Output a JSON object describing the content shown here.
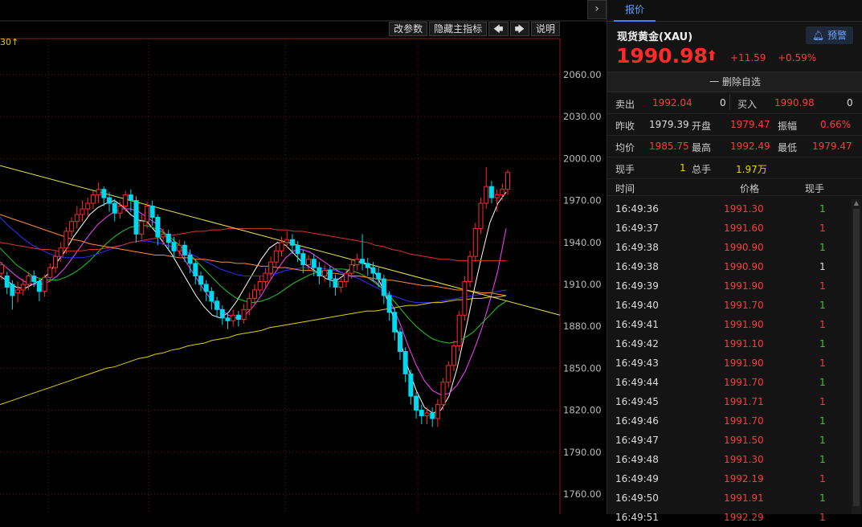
{
  "toolbar": {
    "modify_params": "改参数",
    "hide_indicator": "隐藏主指标",
    "prev_icon": "arrow-left",
    "next_icon": "arrow-right",
    "help": "说明"
  },
  "chart": {
    "period_tag": "30↑"
  },
  "colors": {
    "up": "#ff2a2a",
    "down": "#00d8f0",
    "ma5": "#ffffff",
    "ma10": "#ff40ff",
    "ma20": "#22cc22",
    "ma30": "#3030ff",
    "ma60": "#e03030",
    "ma120": "#ff8a3a",
    "ma250": "#e0d000",
    "trendline": "#e6e64a"
  },
  "chart_data": {
    "type": "candlestick",
    "y_axis_labels": [
      "2060.00",
      "2030.00",
      "2000.00",
      "1970.00",
      "1940.00",
      "1910.00",
      "1880.00",
      "1850.00",
      "1820.00",
      "1790.00",
      "1760.00"
    ],
    "ylim": [
      1745,
      2085
    ],
    "candles": [
      [
        1918,
        1924,
        1913,
        1926
      ],
      [
        1916,
        1908,
        1903,
        1919
      ],
      [
        1910,
        1902,
        1892,
        1913
      ],
      [
        1904,
        1906,
        1897,
        1912
      ],
      [
        1906,
        1910,
        1902,
        1914
      ],
      [
        1910,
        1916,
        1906,
        1919
      ],
      [
        1916,
        1912,
        1908,
        1920
      ],
      [
        1912,
        1905,
        1898,
        1914
      ],
      [
        1905,
        1915,
        1901,
        1917
      ],
      [
        1915,
        1922,
        1912,
        1925
      ],
      [
        1922,
        1930,
        1918,
        1934
      ],
      [
        1930,
        1936,
        1926,
        1940
      ],
      [
        1936,
        1948,
        1932,
        1951
      ],
      [
        1948,
        1955,
        1944,
        1958
      ],
      [
        1955,
        1960,
        1950,
        1966
      ],
      [
        1960,
        1964,
        1955,
        1970
      ],
      [
        1964,
        1968,
        1958,
        1972
      ],
      [
        1968,
        1974,
        1964,
        1977
      ],
      [
        1974,
        1978,
        1968,
        1983
      ],
      [
        1978,
        1972,
        1966,
        1980
      ],
      [
        1972,
        1968,
        1962,
        1976
      ],
      [
        1968,
        1961,
        1955,
        1971
      ],
      [
        1961,
        1966,
        1957,
        1969
      ],
      [
        1966,
        1974,
        1962,
        1977
      ],
      [
        1974,
        1970,
        1962,
        1978
      ],
      [
        1970,
        1946,
        1940,
        1973
      ],
      [
        1946,
        1955,
        1942,
        1960
      ],
      [
        1955,
        1966,
        1950,
        1969
      ],
      [
        1966,
        1958,
        1952,
        1970
      ],
      [
        1958,
        1944,
        1938,
        1960
      ],
      [
        1944,
        1946,
        1938,
        1950
      ],
      [
        1946,
        1940,
        1934,
        1949
      ],
      [
        1940,
        1934,
        1928,
        1944
      ],
      [
        1934,
        1938,
        1930,
        1942
      ],
      [
        1938,
        1931,
        1926,
        1941
      ],
      [
        1931,
        1925,
        1918,
        1935
      ],
      [
        1925,
        1916,
        1910,
        1928
      ],
      [
        1916,
        1910,
        1905,
        1919
      ],
      [
        1910,
        1905,
        1898,
        1913
      ],
      [
        1905,
        1898,
        1892,
        1908
      ],
      [
        1898,
        1892,
        1886,
        1901
      ],
      [
        1892,
        1886,
        1881,
        1895
      ],
      [
        1886,
        1884,
        1878,
        1890
      ],
      [
        1884,
        1888,
        1880,
        1892
      ],
      [
        1888,
        1885,
        1880,
        1891
      ],
      [
        1885,
        1892,
        1882,
        1896
      ],
      [
        1892,
        1900,
        1888,
        1904
      ],
      [
        1900,
        1906,
        1896,
        1910
      ],
      [
        1906,
        1912,
        1902,
        1916
      ],
      [
        1912,
        1918,
        1908,
        1922
      ],
      [
        1918,
        1926,
        1914,
        1930
      ],
      [
        1926,
        1934,
        1922,
        1938
      ],
      [
        1934,
        1940,
        1930,
        1944
      ],
      [
        1940,
        1942,
        1936,
        1948
      ],
      [
        1942,
        1938,
        1932,
        1946
      ],
      [
        1938,
        1932,
        1926,
        1941
      ],
      [
        1932,
        1924,
        1918,
        1935
      ],
      [
        1924,
        1928,
        1920,
        1931
      ],
      [
        1928,
        1922,
        1916,
        1932
      ],
      [
        1922,
        1916,
        1910,
        1926
      ],
      [
        1916,
        1920,
        1912,
        1924
      ],
      [
        1920,
        1914,
        1908,
        1923
      ],
      [
        1914,
        1908,
        1902,
        1917
      ],
      [
        1908,
        1912,
        1904,
        1915
      ],
      [
        1912,
        1918,
        1908,
        1921
      ],
      [
        1918,
        1924,
        1914,
        1928
      ],
      [
        1924,
        1928,
        1920,
        1932
      ],
      [
        1928,
        1925,
        1920,
        1946
      ],
      [
        1925,
        1922,
        1916,
        1929
      ],
      [
        1922,
        1918,
        1912,
        1926
      ],
      [
        1918,
        1914,
        1908,
        1922
      ],
      [
        1914,
        1902,
        1896,
        1917
      ],
      [
        1902,
        1890,
        1884,
        1905
      ],
      [
        1890,
        1876,
        1870,
        1893
      ],
      [
        1876,
        1862,
        1856,
        1879
      ],
      [
        1862,
        1846,
        1840,
        1865
      ],
      [
        1846,
        1830,
        1824,
        1849
      ],
      [
        1830,
        1820,
        1814,
        1833
      ],
      [
        1820,
        1816,
        1810,
        1824
      ],
      [
        1816,
        1818,
        1810,
        1822
      ],
      [
        1818,
        1814,
        1808,
        1822
      ],
      [
        1814,
        1824,
        1808,
        1828
      ],
      [
        1824,
        1840,
        1820,
        1843
      ],
      [
        1840,
        1852,
        1836,
        1855
      ],
      [
        1852,
        1866,
        1848,
        1870
      ],
      [
        1866,
        1888,
        1862,
        1891
      ],
      [
        1888,
        1912,
        1884,
        1916
      ],
      [
        1912,
        1930,
        1908,
        1934
      ],
      [
        1930,
        1950,
        1926,
        1954
      ],
      [
        1950,
        1968,
        1946,
        1972
      ],
      [
        1968,
        1980,
        1964,
        1994
      ],
      [
        1980,
        1972,
        1968,
        1984
      ],
      [
        1972,
        1974,
        1962,
        1978
      ],
      [
        1974,
        1978,
        1970,
        1982
      ],
      [
        1978,
        1990,
        1974,
        1992
      ]
    ],
    "moving_averages": [
      {
        "name": "MA5",
        "values": [
          1916,
          1912,
          1908,
          1907,
          1910,
          1913,
          1918,
          1926,
          1934,
          1944,
          1952,
          1960,
          1965,
          1968,
          1970,
          1966,
          1960,
          1956,
          1955,
          1948,
          1940,
          1932,
          1922,
          1912,
          1902,
          1894,
          1888,
          1886,
          1890,
          1898,
          1908,
          1918,
          1928,
          1936,
          1940,
          1938,
          1932,
          1926,
          1922,
          1918,
          1914,
          1912,
          1916,
          1922,
          1926,
          1924,
          1918,
          1906,
          1890,
          1870,
          1850,
          1834,
          1822,
          1818,
          1820,
          1830,
          1850,
          1876,
          1904,
          1930,
          1954,
          1968,
          1976
        ]
      },
      {
        "name": "MA10",
        "values": [
          1926,
          1921,
          1916,
          1912,
          1910,
          1910,
          1912,
          1916,
          1922,
          1930,
          1938,
          1946,
          1953,
          1958,
          1962,
          1964,
          1964,
          1962,
          1958,
          1954,
          1948,
          1941,
          1933,
          1924,
          1915,
          1906,
          1898,
          1892,
          1888,
          1886,
          1888,
          1894,
          1902,
          1912,
          1921,
          1929,
          1934,
          1935,
          1933,
          1929,
          1925,
          1921,
          1918,
          1916,
          1916,
          1915,
          1912,
          1906,
          1896,
          1882,
          1866,
          1852,
          1841,
          1834,
          1831,
          1832,
          1838,
          1848,
          1862,
          1878,
          1898,
          1920,
          1950
        ]
      },
      {
        "name": "MA20",
        "values": [
          1936,
          1930,
          1924,
          1920,
          1916,
          1914,
          1913,
          1913,
          1915,
          1918,
          1922,
          1927,
          1933,
          1939,
          1944,
          1948,
          1951,
          1952,
          1952,
          1950,
          1947,
          1943,
          1938,
          1933,
          1927,
          1921,
          1915,
          1909,
          1904,
          1900,
          1898,
          1897,
          1898,
          1900,
          1903,
          1907,
          1911,
          1914,
          1917,
          1919,
          1920,
          1921,
          1921,
          1920,
          1918,
          1915,
          1911,
          1906,
          1900,
          1893,
          1886,
          1880,
          1875,
          1871,
          1869,
          1868,
          1869,
          1872,
          1876,
          1882,
          1888,
          1894,
          1898
        ]
      },
      {
        "name": "MA30",
        "values": [
          1958,
          1952,
          1947,
          1942,
          1938,
          1935,
          1932,
          1930,
          1929,
          1929,
          1929,
          1930,
          1932,
          1934,
          1936,
          1938,
          1940,
          1941,
          1941,
          1940,
          1939,
          1937,
          1935,
          1933,
          1930,
          1927,
          1924,
          1921,
          1919,
          1917,
          1916,
          1916,
          1916,
          1917,
          1918,
          1920,
          1921,
          1922,
          1922,
          1922,
          1921,
          1920,
          1918,
          1916,
          1914,
          1911,
          1908,
          1905,
          1902,
          1900,
          1898,
          1897,
          1897,
          1897,
          1898,
          1899,
          1900,
          1901,
          1902,
          1903,
          1904,
          1905,
          1906
        ]
      },
      {
        "name": "MA60",
        "values": [
          1940,
          1939,
          1938,
          1937,
          1936,
          1935,
          1935,
          1934,
          1934,
          1934,
          1934,
          1935,
          1935,
          1936,
          1937,
          1938,
          1940,
          1941,
          1942,
          1943,
          1944,
          1945,
          1946,
          1947,
          1948,
          1948,
          1949,
          1949,
          1950,
          1950,
          1950,
          1950,
          1950,
          1950,
          1949,
          1949,
          1948,
          1948,
          1947,
          1946,
          1945,
          1944,
          1943,
          1942,
          1941,
          1940,
          1938,
          1937,
          1935,
          1934,
          1932,
          1931,
          1930,
          1929,
          1928,
          1928,
          1927,
          1927,
          1927,
          1927,
          1927,
          1927,
          1927
        ]
      },
      {
        "name": "MA120",
        "values": [
          1960,
          1958,
          1956,
          1954,
          1952,
          1950,
          1948,
          1946,
          1944,
          1942,
          1941,
          1939,
          1938,
          1937,
          1936,
          1935,
          1934,
          1933,
          1932,
          1931,
          1931,
          1930,
          1929,
          1929,
          1928,
          1928,
          1927,
          1926,
          1926,
          1925,
          1925,
          1924,
          1923,
          1923,
          1922,
          1922,
          1921,
          1920,
          1920,
          1919,
          1918,
          1918,
          1917,
          1916,
          1916,
          1915,
          1914,
          1913,
          1913,
          1912,
          1911,
          1910,
          1909,
          1909,
          1908,
          1907,
          1906,
          1906,
          1905,
          1904,
          1904,
          1903,
          1902
        ]
      },
      {
        "name": "MA250",
        "values": [
          1824,
          1826,
          1828,
          1830,
          1832,
          1834,
          1836,
          1838,
          1840,
          1842,
          1844,
          1846,
          1848,
          1850,
          1851,
          1853,
          1855,
          1857,
          1858,
          1860,
          1861,
          1863,
          1864,
          1866,
          1867,
          1868,
          1870,
          1871,
          1872,
          1874,
          1875,
          1876,
          1877,
          1879,
          1880,
          1881,
          1882,
          1883,
          1884,
          1885,
          1886,
          1887,
          1888,
          1889,
          1890,
          1891,
          1891,
          1892,
          1893,
          1894,
          1895,
          1895,
          1896,
          1897,
          1897,
          1898,
          1899,
          1899,
          1900,
          1900,
          1901,
          1901,
          1902
        ]
      }
    ],
    "trendline": [
      [
        0,
        1995
      ],
      [
        1,
        1888
      ]
    ],
    "grid": true
  },
  "quote": {
    "tab_label": "报价",
    "symbol": "现货黄金(XAU)",
    "alert_label": "预警",
    "price": "1990.98",
    "change": "+11.59",
    "change_pct": "+0.59%",
    "remove_fav": "一 删除自选",
    "sell_label": "卖出",
    "sell_price": "1992.04",
    "sell_vol": "0",
    "buy_label": "买入",
    "buy_price": "1990.98",
    "buy_vol": "0",
    "prev_close_label": "昨收",
    "prev_close": "1979.39",
    "open_label": "开盘",
    "open": "1979.47",
    "amplitude_label": "振幅",
    "amplitude": "0.66%",
    "avg_label": "均价",
    "avg": "1985.75",
    "high_label": "最高",
    "high": "1992.49",
    "low_label": "最低",
    "low": "1979.47",
    "last_vol_label": "现手",
    "last_vol": "1",
    "total_vol_label": "总手",
    "total_vol": "1.97万"
  },
  "ticks": {
    "headers": {
      "time": "时间",
      "price": "价格",
      "vol": "现手"
    },
    "rows": [
      {
        "time": "16:49:36",
        "price": "1991.30",
        "vol": "1",
        "vc": "grn"
      },
      {
        "time": "16:49:37",
        "price": "1991.60",
        "vol": "1",
        "vc": "red"
      },
      {
        "time": "16:49:38",
        "price": "1990.90",
        "vol": "1",
        "vc": "grn"
      },
      {
        "time": "16:49:38",
        "price": "1990.90",
        "vol": "1",
        "vc": "wht"
      },
      {
        "time": "16:49:39",
        "price": "1991.90",
        "vol": "1",
        "vc": "red"
      },
      {
        "time": "16:49:40",
        "price": "1991.70",
        "vol": "1",
        "vc": "grn"
      },
      {
        "time": "16:49:41",
        "price": "1991.90",
        "vol": "1",
        "vc": "red"
      },
      {
        "time": "16:49:42",
        "price": "1991.10",
        "vol": "1",
        "vc": "grn"
      },
      {
        "time": "16:49:43",
        "price": "1991.90",
        "vol": "1",
        "vc": "red"
      },
      {
        "time": "16:49:44",
        "price": "1991.70",
        "vol": "1",
        "vc": "grn"
      },
      {
        "time": "16:49:45",
        "price": "1991.71",
        "vol": "1",
        "vc": "red"
      },
      {
        "time": "16:49:46",
        "price": "1991.70",
        "vol": "1",
        "vc": "grn"
      },
      {
        "time": "16:49:47",
        "price": "1991.50",
        "vol": "1",
        "vc": "grn"
      },
      {
        "time": "16:49:48",
        "price": "1991.30",
        "vol": "1",
        "vc": "grn"
      },
      {
        "time": "16:49:49",
        "price": "1992.19",
        "vol": "1",
        "vc": "red"
      },
      {
        "time": "16:49:50",
        "price": "1991.91",
        "vol": "1",
        "vc": "grn"
      },
      {
        "time": "16:49:51",
        "price": "1992.29",
        "vol": "1",
        "vc": "red"
      }
    ]
  }
}
